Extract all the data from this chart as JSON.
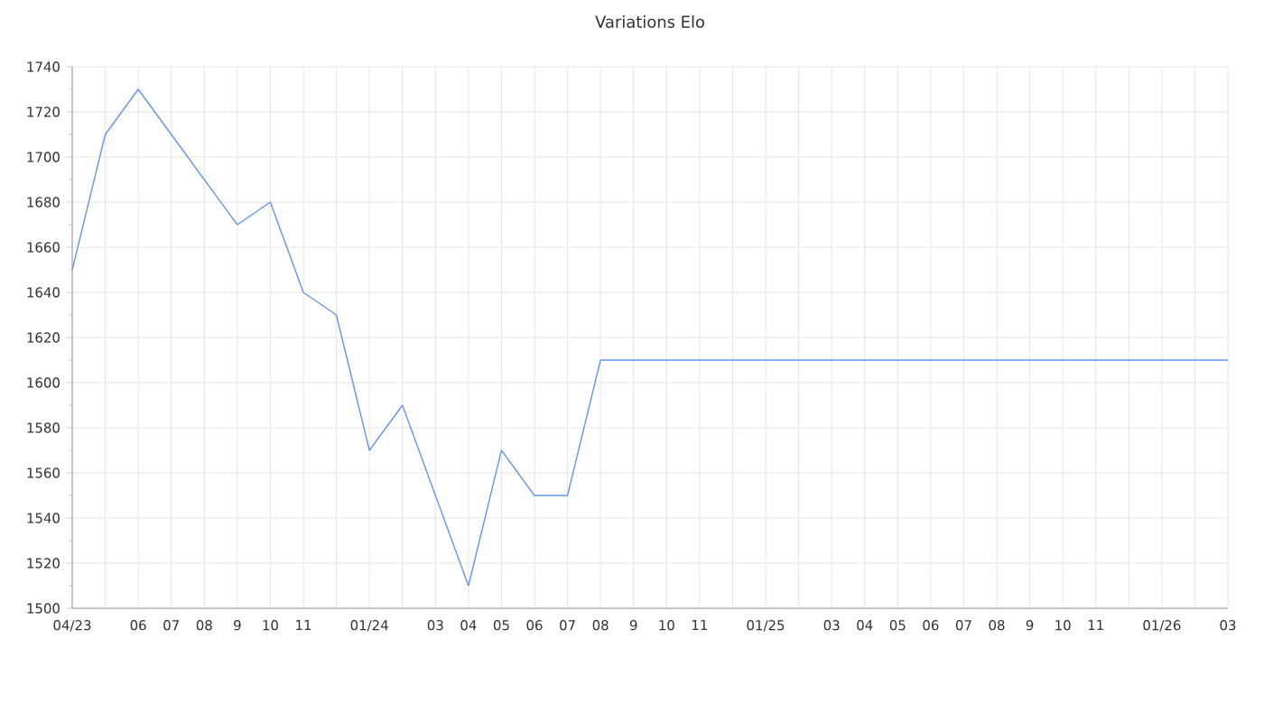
{
  "chart_data": {
    "type": "line",
    "title": "Variations Elo",
    "categories": [
      "04/23",
      null,
      "06",
      "07",
      "08",
      "9",
      "10",
      "11",
      null,
      "01/24",
      null,
      "03",
      "04",
      "05",
      "06",
      "07",
      "08",
      "9",
      "10",
      "11",
      null,
      "01/25",
      null,
      "03",
      "04",
      "05",
      "06",
      "07",
      "08",
      "9",
      "10",
      "11",
      null,
      "01/26",
      null,
      "03"
    ],
    "series": [
      {
        "color": "#6495ed",
        "values": [
          1650,
          1710,
          1730,
          1710,
          1690,
          1670,
          1680,
          1640,
          1630,
          1570,
          1590,
          1550,
          1510,
          1570,
          1550,
          1550,
          1610,
          1610,
          1610,
          1610,
          1610,
          1610,
          1610,
          1610,
          1610,
          1610,
          1610,
          1610,
          1610,
          1610,
          1610,
          1610,
          1610,
          1610,
          1610,
          1610
        ]
      }
    ],
    "ylim": [
      1500,
      1740
    ],
    "yticks": [
      1500,
      1520,
      1540,
      1560,
      1580,
      1600,
      1620,
      1640,
      1660,
      1680,
      1700,
      1720,
      1740
    ],
    "grid": true,
    "marker": "none",
    "line_style": "solid"
  }
}
